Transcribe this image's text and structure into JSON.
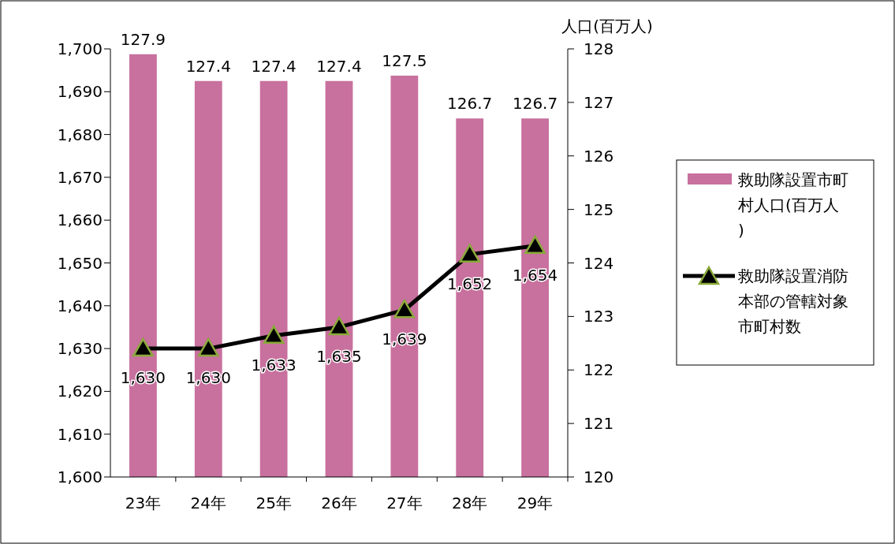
{
  "chart_data": {
    "type": "bar",
    "y2label": "人口(百万人)",
    "categories": [
      "23年",
      "24年",
      "25年",
      "26年",
      "27年",
      "28年",
      "29年"
    ],
    "series": [
      {
        "name": "救助隊設置市町村人口(百万人)",
        "axis": "y2",
        "color": "#c8709e",
        "values": [
          127.9,
          127.4,
          127.4,
          127.4,
          127.5,
          126.7,
          126.7
        ]
      },
      {
        "name": "救助隊設置消防本部の管轄対象市町村数",
        "type": "line",
        "axis": "y",
        "color": "#000000",
        "values": [
          1630,
          1630,
          1633,
          1635,
          1639,
          1652,
          1654
        ],
        "value_labels": [
          "1,630",
          "1,630",
          "1,633",
          "1,635",
          "1,639",
          "1,652",
          "1,654"
        ]
      }
    ],
    "ylim": [
      1600,
      1700
    ],
    "yticks": [
      {
        "value": 1600,
        "label": "1,600"
      },
      {
        "value": 1610,
        "label": "1,610"
      },
      {
        "value": 1620,
        "label": "1,620"
      },
      {
        "value": 1630,
        "label": "1,630"
      },
      {
        "value": 1640,
        "label": "1,640"
      },
      {
        "value": 1650,
        "label": "1,650"
      },
      {
        "value": 1660,
        "label": "1,660"
      },
      {
        "value": 1670,
        "label": "1,670"
      },
      {
        "value": 1680,
        "label": "1,680"
      },
      {
        "value": 1690,
        "label": "1,690"
      },
      {
        "value": 1700,
        "label": "1,700"
      }
    ],
    "y2lim": [
      120,
      128
    ],
    "y2ticks": [
      120,
      121,
      122,
      123,
      124,
      125,
      126,
      127,
      128
    ],
    "data_labels": true,
    "marker": "triangle",
    "line_style": "solid",
    "legend": "right",
    "grid": false
  }
}
